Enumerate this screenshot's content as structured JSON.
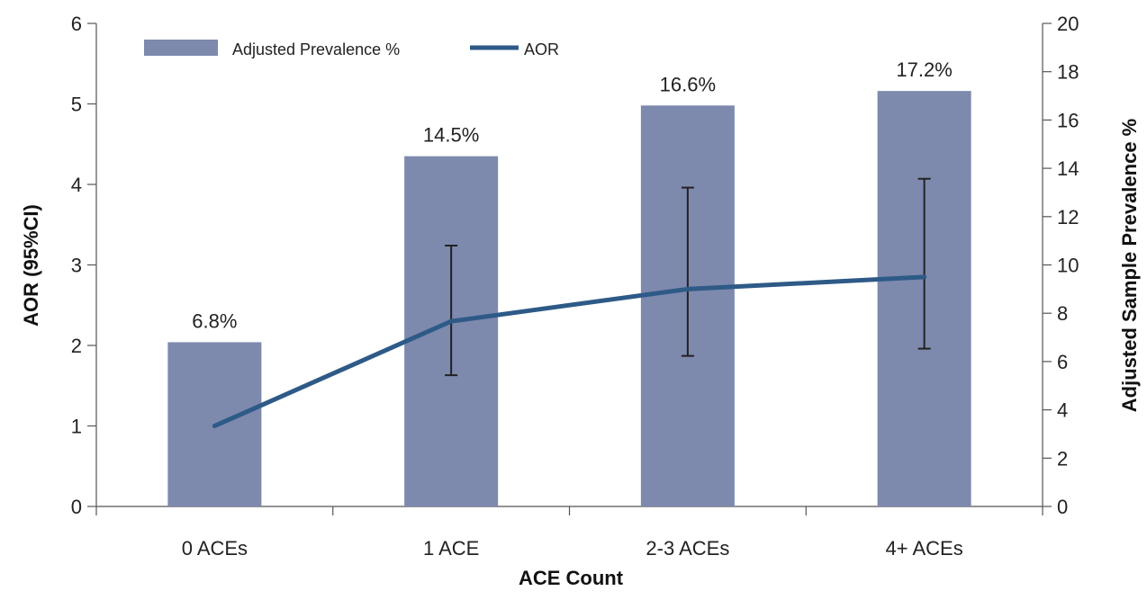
{
  "chart_data": {
    "type": "bar",
    "categories": [
      "0 ACEs",
      "1 ACE",
      "2-3 ACEs",
      "4+ ACEs"
    ],
    "xlabel": "ACE Count",
    "ylabel_left": "AOR (95%CI)",
    "ylabel_right": "Adjusted Sample Prevalence %",
    "ylim_left": [
      0,
      6
    ],
    "ylim_right": [
      0,
      20
    ],
    "yticks_left": [
      "0",
      "1",
      "2",
      "3",
      "4",
      "5",
      "6"
    ],
    "yticks_right": [
      "0",
      "2",
      "4",
      "6",
      "8",
      "10",
      "12",
      "14",
      "16",
      "18",
      "20"
    ],
    "grid": false,
    "legend_position": "top-left",
    "series": [
      {
        "name": "Adjusted Prevalence %",
        "kind": "bar",
        "axis": "right",
        "values": [
          6.8,
          14.5,
          16.6,
          17.2
        ],
        "labels": [
          "6.8%",
          "14.5%",
          "16.6%",
          "17.2%"
        ],
        "color": "#7d89ad"
      },
      {
        "name": "AOR",
        "kind": "line",
        "axis": "left",
        "values": [
          1.0,
          2.3,
          2.7,
          2.85
        ],
        "ci_low": [
          null,
          1.63,
          1.87,
          1.96
        ],
        "ci_high": [
          null,
          3.24,
          3.96,
          4.07
        ],
        "color": "#2e5a87"
      }
    ]
  }
}
